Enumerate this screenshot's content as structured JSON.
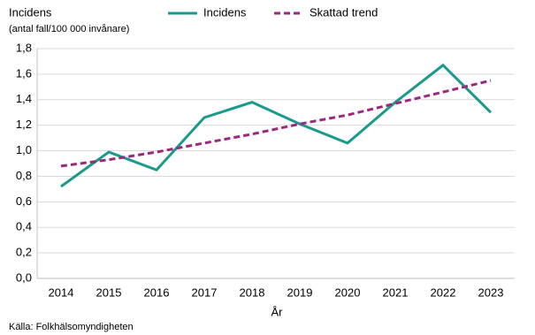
{
  "chart_data": {
    "type": "line",
    "title": "Incidens",
    "subtitle": "(antal fall/100 000 invånare)",
    "x_label": "År",
    "source": "Källa: Folkhälsomyndigheten",
    "categories": [
      "2014",
      "2015",
      "2016",
      "2017",
      "2018",
      "2019",
      "2020",
      "2021",
      "2022",
      "2023"
    ],
    "series": [
      {
        "name": "Incidens",
        "color": "#1a9a8a",
        "line_style": "solid",
        "values": [
          0.72,
          0.99,
          0.85,
          1.26,
          1.38,
          1.21,
          1.06,
          1.38,
          1.67,
          1.3
        ]
      },
      {
        "name": "Skattad trend",
        "color": "#9b2a7e",
        "line_style": "dashed",
        "values": [
          0.88,
          0.93,
          0.99,
          1.06,
          1.13,
          1.21,
          1.28,
          1.37,
          1.46,
          1.55
        ]
      }
    ],
    "ylim": [
      0,
      1.8
    ],
    "yticks": [
      {
        "value": 0,
        "label": "0,0"
      },
      {
        "value": 0.2,
        "label": "0,2"
      },
      {
        "value": 0.4,
        "label": "0,4"
      },
      {
        "value": 0.6,
        "label": "0,6"
      },
      {
        "value": 0.8,
        "label": "0,8"
      },
      {
        "value": 1.0,
        "label": "1,0"
      },
      {
        "value": 1.2,
        "label": "1,2"
      },
      {
        "value": 1.4,
        "label": "1,4"
      },
      {
        "value": 1.6,
        "label": "1,6"
      },
      {
        "value": 1.8,
        "label": "1,8"
      }
    ],
    "grid": true,
    "legend": "top"
  }
}
